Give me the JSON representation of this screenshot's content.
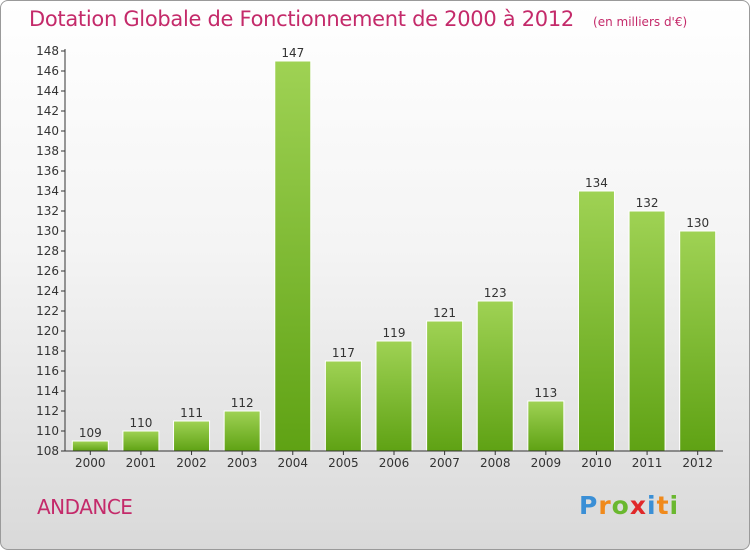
{
  "header": {
    "title": "Dotation Globale de Fonctionnement de 2000 à 2012",
    "unit": "(en milliers d'€)"
  },
  "commune": "ANDANCE",
  "logo": {
    "text": "Proxiti",
    "letters": [
      {
        "ch": "P",
        "color": "#3a8fd6"
      },
      {
        "ch": "r",
        "color": "#f08a1c"
      },
      {
        "ch": "o",
        "color": "#6ab82f"
      },
      {
        "ch": "x",
        "color": "#e0282a"
      },
      {
        "ch": "i",
        "color": "#3a8fd6"
      },
      {
        "ch": "t",
        "color": "#f08a1c"
      },
      {
        "ch": "i",
        "color": "#6ab82f"
      }
    ]
  },
  "colors": {
    "title": "#c42a6a",
    "bar_light": "#9fd254",
    "bar_dark": "#5fa214",
    "axis": "#333333",
    "grid_tick": "#333333"
  },
  "chart_data": {
    "type": "bar",
    "categories": [
      "2000",
      "2001",
      "2002",
      "2003",
      "2004",
      "2005",
      "2006",
      "2007",
      "2008",
      "2009",
      "2010",
      "2011",
      "2012"
    ],
    "values": [
      109,
      110,
      111,
      112,
      147,
      117,
      119,
      121,
      123,
      113,
      134,
      132,
      130
    ],
    "ylim": [
      108,
      148
    ],
    "ytick_step": 2,
    "grid": false,
    "legend": "none"
  }
}
